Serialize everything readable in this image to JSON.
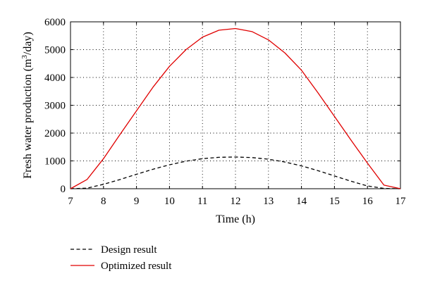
{
  "chart_data": {
    "type": "line",
    "xlabel": "Time (h)",
    "ylabel_prefix": "Fresh water production (m",
    "ylabel_sup": "3",
    "ylabel_suffix": "/day)",
    "xlim": [
      7,
      17
    ],
    "ylim": [
      0,
      6000
    ],
    "xticks": [
      7,
      8,
      9,
      10,
      11,
      12,
      13,
      14,
      15,
      16,
      17
    ],
    "yticks": [
      0,
      1000,
      2000,
      3000,
      4000,
      5000,
      6000
    ],
    "grid": true,
    "legend_position": "below",
    "series": [
      {
        "name": "Design result",
        "color": "#000000",
        "dash": true,
        "x": [
          7,
          7.5,
          8,
          8.5,
          9,
          9.5,
          10,
          10.5,
          11,
          11.5,
          12,
          12.5,
          13,
          13.5,
          14,
          14.5,
          15,
          15.5,
          16,
          16.5,
          17
        ],
        "y": [
          0,
          20,
          160,
          330,
          520,
          700,
          860,
          990,
          1080,
          1130,
          1140,
          1120,
          1060,
          960,
          820,
          650,
          460,
          270,
          100,
          10,
          0
        ]
      },
      {
        "name": "Optimized result",
        "color": "#e00000",
        "dash": false,
        "x": [
          7,
          7.5,
          8,
          8.5,
          9,
          9.5,
          10,
          10.5,
          11,
          11.5,
          12,
          12.5,
          13,
          13.5,
          14,
          14.5,
          15,
          15.5,
          16,
          16.5,
          17
        ],
        "y": [
          0,
          330,
          1080,
          1950,
          2800,
          3650,
          4400,
          5000,
          5450,
          5700,
          5760,
          5650,
          5350,
          4880,
          4260,
          3450,
          2600,
          1750,
          920,
          130,
          0
        ]
      }
    ]
  }
}
